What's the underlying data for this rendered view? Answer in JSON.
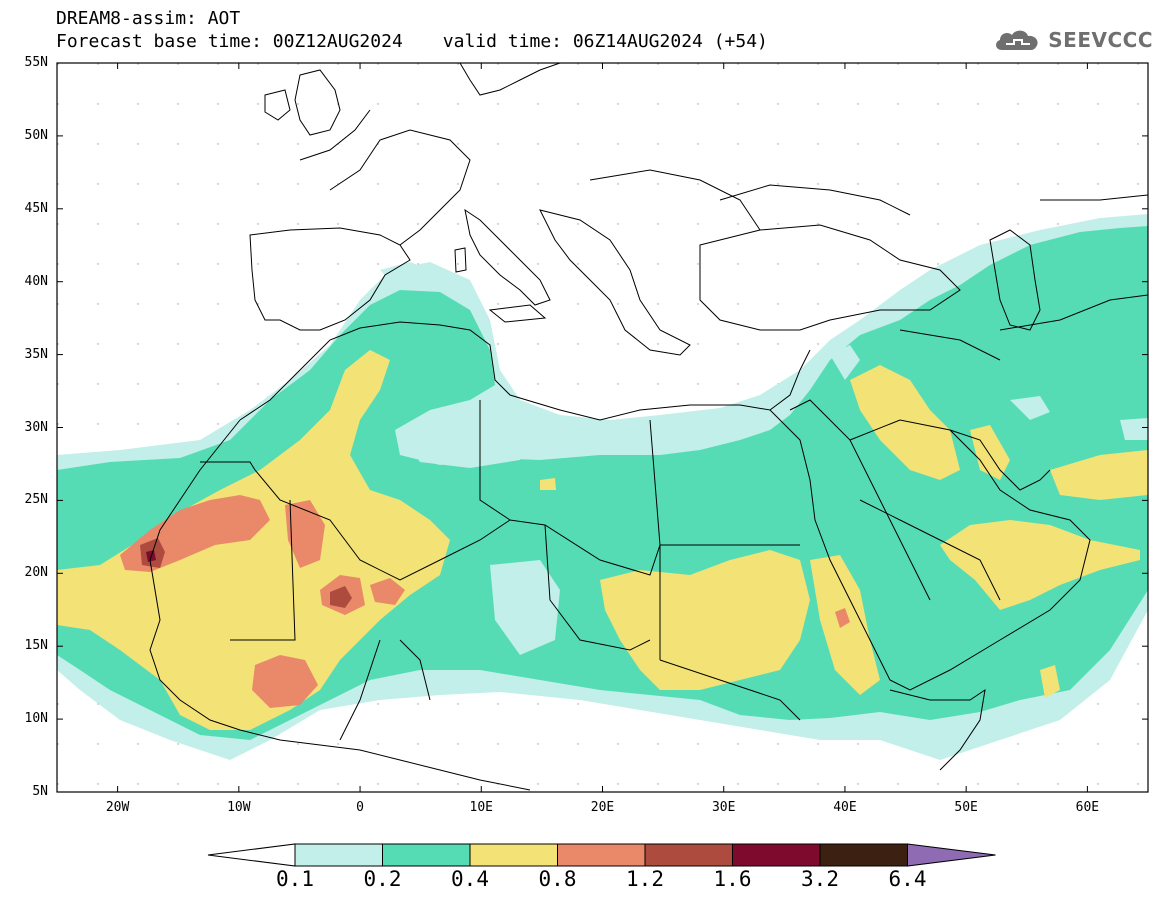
{
  "header": {
    "title_line1": "DREAM8-assim: AOT",
    "base_time": "Forecast base time: 00Z12AUG2024",
    "valid_time": "valid time: 06Z14AUG2024 (+54)"
  },
  "logo": {
    "text": "SEEVCCC",
    "icon": "cloud-icon"
  },
  "axes": {
    "lat_labels": [
      "55N",
      "50N",
      "45N",
      "40N",
      "35N",
      "30N",
      "25N",
      "20N",
      "15N",
      "10N",
      "5N"
    ],
    "lon_labels": [
      "20W",
      "10W",
      "0",
      "10E",
      "20E",
      "30E",
      "40E",
      "50E",
      "60E"
    ],
    "lat_range": [
      5,
      55
    ],
    "lon_range": [
      -25,
      65
    ]
  },
  "colorbar": {
    "labels": [
      "0.1",
      "0.2",
      "0.4",
      "0.8",
      "1.2",
      "1.6",
      "3.2",
      "6.4"
    ],
    "colors": [
      "#ffffff",
      "#c2efe9",
      "#55dcb5",
      "#f3e276",
      "#e9896a",
      "#ad4b3f",
      "#7e0b2e",
      "#3c2112",
      "#8f6bb3"
    ]
  },
  "map_colors": {
    "level_0_1": "#c2efe9",
    "level_0_2": "#55dcb5",
    "level_0_4": "#f3e276",
    "level_0_8": "#e9896a",
    "level_1_2": "#ad4b3f",
    "level_1_6": "#7e0b2e"
  }
}
